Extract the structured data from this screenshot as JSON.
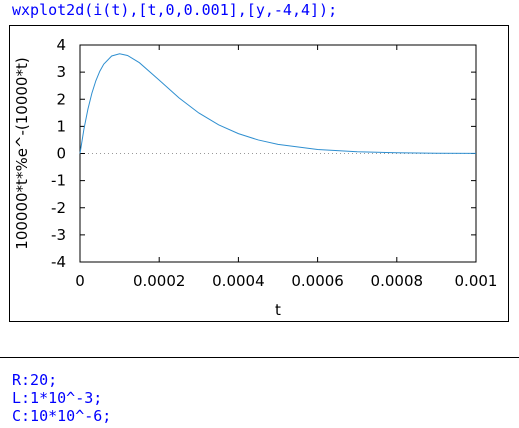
{
  "cells": {
    "plot_command": "wxplot2d(i(t),[t,0,0.001],[y,-4,4]);",
    "inputs": [
      "R:20;",
      "L:1*10^-3;",
      "C:10*10^-6;"
    ]
  },
  "chart_data": {
    "type": "line",
    "xlabel": "t",
    "ylabel": "100000*t*%e^-(10000*t)",
    "xlim": [
      0,
      0.001
    ],
    "ylim": [
      -4,
      4
    ],
    "x_ticks": [
      "0",
      "0.0002",
      "0.0004",
      "0.0006",
      "0.0008",
      "0.001"
    ],
    "x_tick_values": [
      0,
      0.0002,
      0.0004,
      0.0006,
      0.0008,
      0.001
    ],
    "y_ticks": [
      "4",
      "3",
      "2",
      "1",
      "0",
      "-1",
      "-2",
      "-3",
      "-4"
    ],
    "y_tick_values": [
      4,
      3,
      2,
      1,
      0,
      -1,
      -2,
      -3,
      -4
    ],
    "series": [
      {
        "x": [
          0,
          1e-05,
          2e-05,
          3e-05,
          4e-05,
          5e-05,
          6e-05,
          8e-05,
          0.0001,
          0.00012,
          0.00015,
          0.0002,
          0.00025,
          0.0003,
          0.00035,
          0.0004,
          0.00045,
          0.0005,
          0.0006,
          0.0007,
          0.0008,
          0.0009,
          0.001
        ],
        "y": [
          0,
          0.905,
          1.637,
          2.222,
          2.681,
          3.033,
          3.293,
          3.595,
          3.679,
          3.614,
          3.347,
          2.707,
          2.052,
          1.494,
          1.057,
          0.733,
          0.5,
          0.337,
          0.149,
          0.064,
          0.027,
          0.011,
          0.0045
        ]
      }
    ],
    "zero_line": true,
    "colors": {
      "line": "#2f8fd0",
      "zero_line": "#999999"
    }
  }
}
